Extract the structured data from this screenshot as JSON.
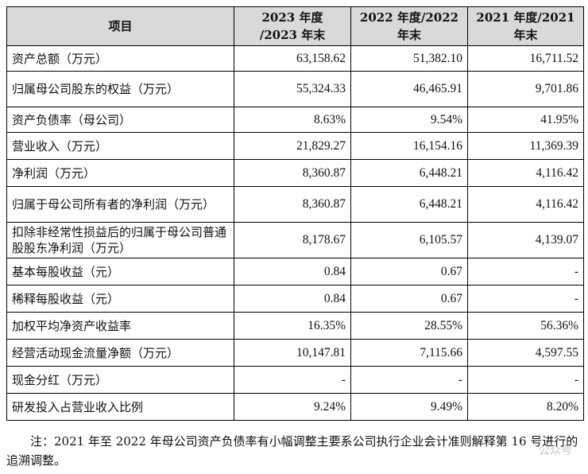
{
  "table": {
    "headers": [
      {
        "line1": "项目",
        "line2": ""
      },
      {
        "line1": "2023 年度",
        "line2": "/2023 年末"
      },
      {
        "line1": "2022 年度/2022",
        "line2": "年末"
      },
      {
        "line1": "2021 年度/2021",
        "line2": "年末"
      }
    ],
    "rows": [
      {
        "label": "资产总额（万元）",
        "values": [
          "63,158.62",
          "51,382.10",
          "16,711.52"
        ]
      },
      {
        "label": "归属母公司股东的权益（万元）",
        "values": [
          "55,324.33",
          "46,465.91",
          "9,701.86"
        ]
      },
      {
        "label": "资产负债率（母公司）",
        "values": [
          "8.63%",
          "9.54%",
          "41.95%"
        ]
      },
      {
        "label": "营业收入（万元）",
        "values": [
          "21,829.27",
          "16,154.16",
          "11,369.39"
        ]
      },
      {
        "label": "净利润（万元）",
        "values": [
          "8,360.87",
          "6,448.21",
          "4,116.42"
        ]
      },
      {
        "label": "归属于母公司所有者的净利润（万元）",
        "values": [
          "8,360.87",
          "6,448.21",
          "4,116.42"
        ]
      },
      {
        "label": "扣除非经常性损益后的归属于母公司普通股股东净利润（万元）",
        "values": [
          "8,178.67",
          "6,105.57",
          "4,139.07"
        ]
      },
      {
        "label": "基本每股收益（元）",
        "values": [
          "0.84",
          "0.67",
          "-"
        ]
      },
      {
        "label": "稀释每股收益（元）",
        "values": [
          "0.84",
          "0.67",
          "-"
        ]
      },
      {
        "label": "加权平均净资产收益率",
        "values": [
          "16.35%",
          "28.55%",
          "56.36%"
        ]
      },
      {
        "label": "经营活动现金流量净额（万元）",
        "values": [
          "10,147.81",
          "7,115.66",
          "4,597.55"
        ]
      },
      {
        "label": "现金分红（万元）",
        "values": [
          "-",
          "-",
          "-"
        ]
      },
      {
        "label": "研发投入占营业收入比例",
        "values": [
          "9.24%",
          "9.49%",
          "8.20%"
        ]
      }
    ]
  },
  "note": "注：2021 年至 2022 年母公司资产负债率有小幅调整主要系公司执行企业会计准则解释第 16 号进行的追溯调整。",
  "watermark": "公众号"
}
